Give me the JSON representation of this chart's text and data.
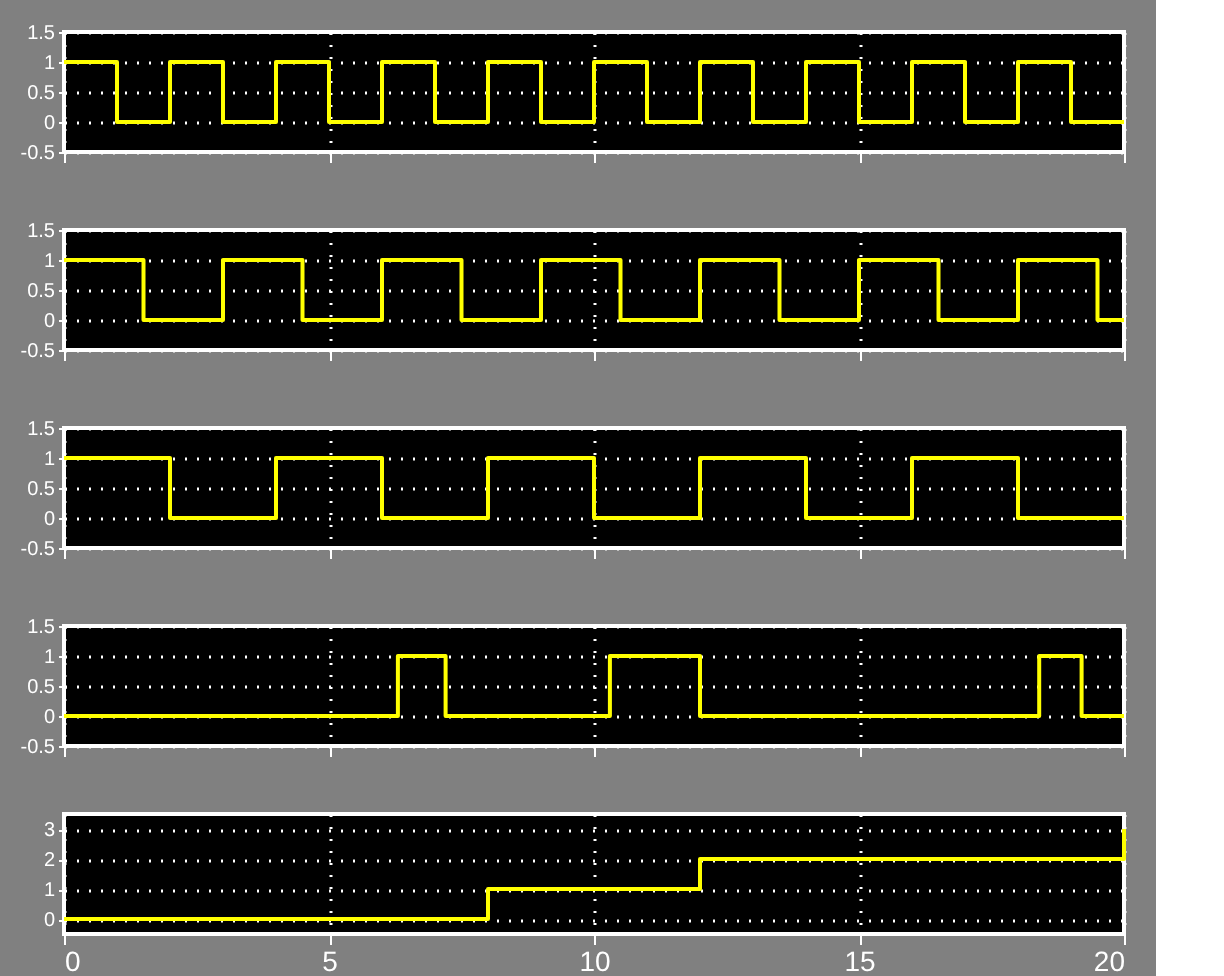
{
  "chart_data": [
    {
      "type": "step",
      "color": "#ffff00",
      "x": [
        0,
        1,
        2,
        3,
        4,
        5,
        6,
        7,
        8,
        9,
        10,
        11,
        12,
        13,
        14,
        15,
        16,
        17,
        18,
        19,
        20
      ],
      "values": [
        1,
        0,
        1,
        0,
        1,
        0,
        1,
        0,
        1,
        0,
        1,
        0,
        1,
        0,
        1,
        0,
        1,
        0,
        1,
        0,
        0
      ],
      "xlim": [
        0,
        20
      ],
      "xticks": [
        0,
        5,
        10,
        15,
        20
      ],
      "ylim": [
        -0.5,
        1.5
      ],
      "yticks": [
        -0.5,
        0,
        0.5,
        1,
        1.5
      ],
      "grid": true,
      "tick_labels": "y"
    },
    {
      "type": "step",
      "color": "#ffff00",
      "x": [
        0,
        1.5,
        3,
        4.5,
        6,
        7.5,
        9,
        10.5,
        12,
        13.5,
        15,
        16.5,
        18,
        19.5,
        20
      ],
      "values": [
        1,
        0,
        1,
        0,
        1,
        0,
        1,
        0,
        1,
        0,
        1,
        0,
        1,
        0,
        0
      ],
      "xlim": [
        0,
        20
      ],
      "xticks": [
        0,
        5,
        10,
        15,
        20
      ],
      "ylim": [
        -0.5,
        1.5
      ],
      "yticks": [
        -0.5,
        0,
        0.5,
        1,
        1.5
      ],
      "grid": true,
      "tick_labels": "y"
    },
    {
      "type": "step",
      "color": "#ffff00",
      "x": [
        0,
        2,
        4,
        6,
        8,
        10,
        12,
        14,
        16,
        18,
        20
      ],
      "values": [
        1,
        0,
        1,
        0,
        1,
        0,
        1,
        0,
        1,
        0,
        0
      ],
      "xlim": [
        0,
        20
      ],
      "xticks": [
        0,
        5,
        10,
        15,
        20
      ],
      "ylim": [
        -0.5,
        1.5
      ],
      "yticks": [
        -0.5,
        0,
        0.5,
        1,
        1.5
      ],
      "grid": true,
      "tick_labels": "y"
    },
    {
      "type": "step",
      "color": "#ffff00",
      "x": [
        0,
        6.3,
        7.2,
        10.3,
        12,
        18.4,
        19.2,
        20
      ],
      "values": [
        0,
        1,
        0,
        1,
        0,
        1,
        0,
        0
      ],
      "xlim": [
        0,
        20
      ],
      "xticks": [
        0,
        5,
        10,
        15,
        20
      ],
      "ylim": [
        -0.5,
        1.5
      ],
      "yticks": [
        -0.5,
        0,
        0.5,
        1,
        1.5
      ],
      "grid": true,
      "tick_labels": "y"
    },
    {
      "type": "step",
      "color": "#ffff00",
      "x": [
        0,
        8,
        12,
        20
      ],
      "values": [
        0,
        1,
        2,
        3
      ],
      "xlim": [
        0,
        20
      ],
      "xticks": [
        0,
        5,
        10,
        15,
        20
      ],
      "ylim": [
        -0.5,
        3.5
      ],
      "yticks": [
        0,
        1,
        2,
        3
      ],
      "grid": true
    }
  ]
}
